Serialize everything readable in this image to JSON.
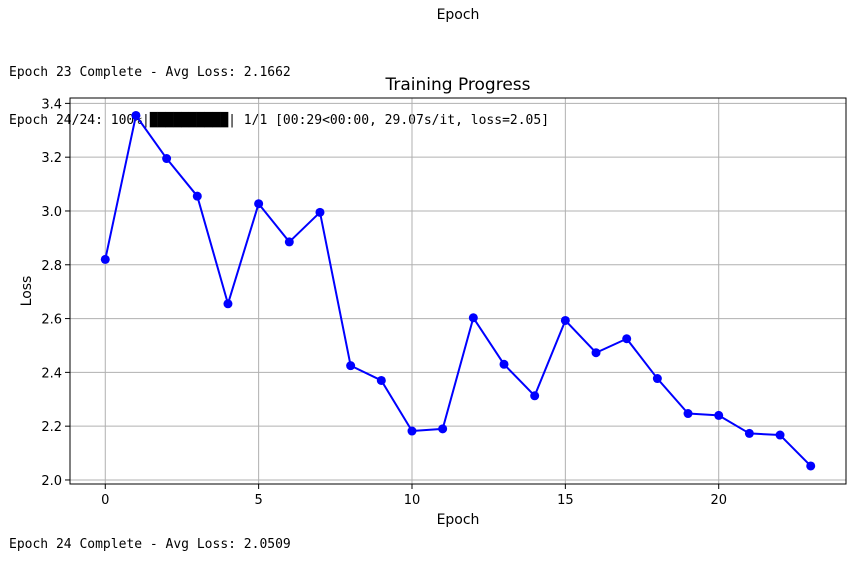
{
  "top_axis_label": "Epoch",
  "log_top": [
    "Epoch 23 Complete - Avg Loss: 2.1662",
    "Epoch 24/24: 100%|██████████| 1/1 [00:29<00:00, 29.07s/it, loss=2.05]"
  ],
  "log_bottom": "Epoch 24 Complete - Avg Loss: 2.0509",
  "chart_data": {
    "type": "line",
    "title": "Training Progress",
    "xlabel": "Epoch",
    "ylabel": "Loss",
    "x": [
      0,
      1,
      2,
      3,
      4,
      5,
      6,
      7,
      8,
      9,
      10,
      11,
      12,
      13,
      14,
      15,
      16,
      17,
      18,
      19,
      20,
      21,
      22,
      23
    ],
    "series": [
      {
        "values": [
          2.82,
          3.355,
          3.195,
          3.055,
          2.655,
          3.027,
          2.885,
          2.995,
          2.425,
          2.37,
          2.182,
          2.19,
          2.603,
          2.43,
          2.313,
          2.593,
          2.473,
          2.525,
          2.377,
          2.247,
          2.24,
          2.173,
          2.167,
          2.052
        ],
        "color": "#0000ff",
        "marker": "circle"
      }
    ],
    "xlim": [
      -1.15,
      24.15
    ],
    "ylim": [
      1.985,
      3.42
    ],
    "xticks": [
      0,
      5,
      10,
      15,
      20
    ],
    "yticks": [
      2.0,
      2.2,
      2.4,
      2.6,
      2.8,
      3.0,
      3.2,
      3.4
    ],
    "ytick_labels": [
      "2.0",
      "2.2",
      "2.4",
      "2.6",
      "2.8",
      "3.0",
      "3.2",
      "3.4"
    ],
    "grid": true,
    "grid_color": "#b0b0b0"
  }
}
